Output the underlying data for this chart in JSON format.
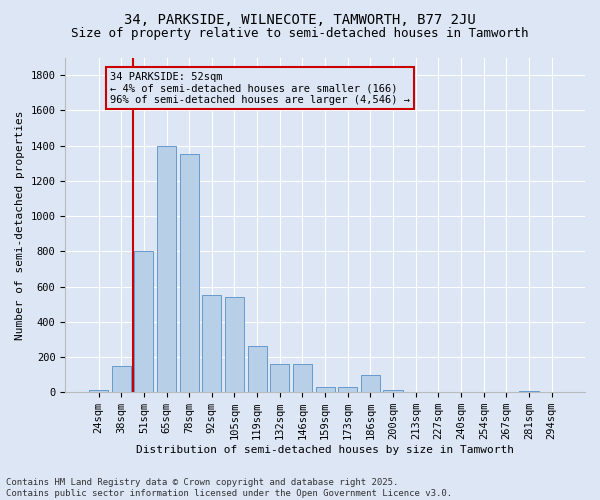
{
  "title1": "34, PARKSIDE, WILNECOTE, TAMWORTH, B77 2JU",
  "title2": "Size of property relative to semi-detached houses in Tamworth",
  "xlabel": "Distribution of semi-detached houses by size in Tamworth",
  "ylabel": "Number of semi-detached properties",
  "categories": [
    "24sqm",
    "38sqm",
    "51sqm",
    "65sqm",
    "78sqm",
    "92sqm",
    "105sqm",
    "119sqm",
    "132sqm",
    "146sqm",
    "159sqm",
    "173sqm",
    "186sqm",
    "200sqm",
    "213sqm",
    "227sqm",
    "240sqm",
    "254sqm",
    "267sqm",
    "281sqm",
    "294sqm"
  ],
  "values": [
    10,
    150,
    800,
    1400,
    1350,
    550,
    540,
    260,
    160,
    160,
    30,
    28,
    100,
    10,
    0,
    4,
    0,
    0,
    0,
    5,
    0
  ],
  "bar_color": "#b8cfe8",
  "bar_edge_color": "#6699cc",
  "background_color": "#dce6f5",
  "grid_color": "#ffffff",
  "vline_color": "#cc0000",
  "vline_index": 2,
  "annotation_text": "34 PARKSIDE: 52sqm\n← 4% of semi-detached houses are smaller (166)\n96% of semi-detached houses are larger (4,546) →",
  "annotation_box_edge_color": "#cc0000",
  "ylim": [
    0,
    1900
  ],
  "yticks": [
    0,
    200,
    400,
    600,
    800,
    1000,
    1200,
    1400,
    1600,
    1800
  ],
  "footer1": "Contains HM Land Registry data © Crown copyright and database right 2025.",
  "footer2": "Contains public sector information licensed under the Open Government Licence v3.0.",
  "title1_fontsize": 10,
  "title2_fontsize": 9,
  "xlabel_fontsize": 8,
  "ylabel_fontsize": 8,
  "tick_fontsize": 7.5,
  "annotation_fontsize": 7.5,
  "footer_fontsize": 6.5
}
